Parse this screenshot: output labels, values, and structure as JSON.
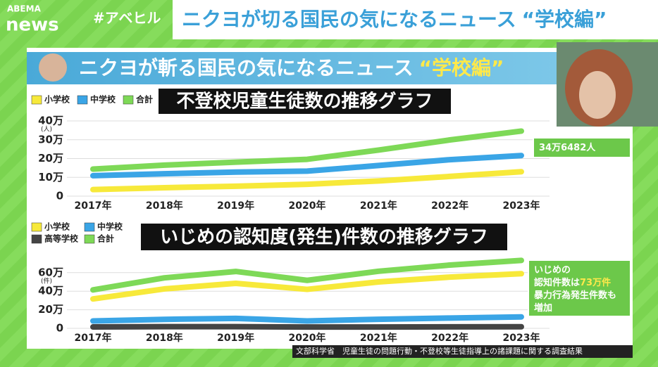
{
  "top_bar": {
    "logo_top": "ABEMA",
    "logo_bottom": "news",
    "hashtag": "#アベヒル",
    "headline": "ニクヨが切る国民の気になるニュース",
    "headline_tag": "“学校編”"
  },
  "banner": {
    "text": "ニクヨが斬る国民の気になるニュース",
    "tag": "“学校編”"
  },
  "source": "文部科学省　児童生徒の問題行動・不登校等生徒指導上の諸課題に関する調査結果",
  "chart_data": [
    {
      "type": "line",
      "title": "不登校児童生徒数の推移グラフ",
      "y_unit": "(人)",
      "categories": [
        "2017年",
        "2018年",
        "2019年",
        "2020年",
        "2021年",
        "2022年",
        "2023年"
      ],
      "series": [
        {
          "name": "小学校",
          "color": "#f7e93a",
          "values": [
            3.5,
            4.5,
            5.3,
            6.3,
            8.1,
            10.5,
            13.0
          ]
        },
        {
          "name": "中学校",
          "color": "#3aa5e6",
          "values": [
            10.9,
            11.9,
            12.8,
            13.3,
            16.3,
            19.4,
            21.6
          ]
        },
        {
          "name": "合計",
          "color": "#7ed957",
          "values": [
            14.4,
            16.5,
            18.1,
            19.6,
            24.5,
            29.9,
            34.6
          ]
        }
      ],
      "ylim": [
        0,
        40
      ],
      "yticks": [
        0,
        {
          "value": 10,
          "label": "10万"
        },
        {
          "value": 20,
          "label": "20万"
        },
        {
          "value": 30,
          "label": "30万"
        },
        {
          "value": 40,
          "label": "40万"
        }
      ],
      "grid": true,
      "annotation": {
        "lines": [
          [
            "34万6482人"
          ]
        ]
      }
    },
    {
      "type": "line",
      "title": "いじめの認知度(発生)件数の推移グラフ",
      "y_unit": "(件)",
      "categories": [
        "2017年",
        "2018年",
        "2019年",
        "2020年",
        "2021年",
        "2022年",
        "2023年"
      ],
      "series": [
        {
          "name": "小学校",
          "color": "#f7e93a",
          "values": [
            31.7,
            42.5,
            48.5,
            42.0,
            50.0,
            55.2,
            58.9
          ]
        },
        {
          "name": "中学校",
          "color": "#3aa5e6",
          "values": [
            8.0,
            9.7,
            10.7,
            8.0,
            9.8,
            11.1,
            12.3
          ]
        },
        {
          "name": "高等学校",
          "color": "#444444",
          "values": [
            1.5,
            1.8,
            1.8,
            1.4,
            1.4,
            1.6,
            1.7
          ]
        },
        {
          "name": "合計",
          "color": "#7ed957",
          "values": [
            41.4,
            54.4,
            61.3,
            51.7,
            61.5,
            68.2,
            73.2
          ]
        }
      ],
      "ylim": [
        0,
        75
      ],
      "yticks": [
        0,
        {
          "value": 20,
          "label": "20万"
        },
        {
          "value": 40,
          "label": "40万"
        },
        {
          "value": 60,
          "label": "60万"
        }
      ],
      "grid": true,
      "annotation": {
        "lines": [
          [
            "いじめの"
          ],
          [
            "認知件数は",
            "73万件"
          ],
          [
            "暴力行為発生件数も"
          ],
          [
            "増加"
          ]
        ]
      }
    }
  ]
}
